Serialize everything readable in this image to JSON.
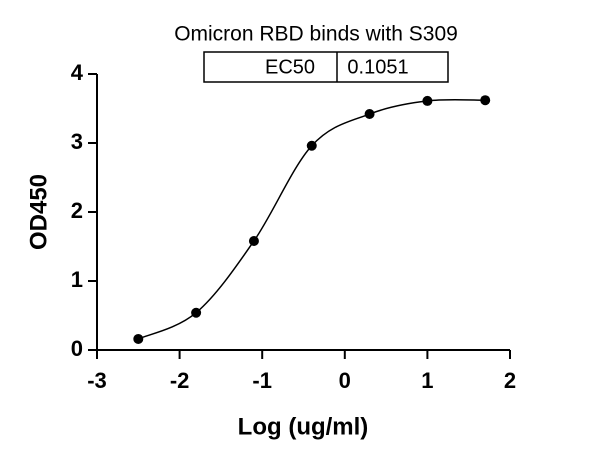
{
  "chart_data": {
    "type": "scatter",
    "title": "Omicron RBD binds with S309",
    "annotation": {
      "label": "EC50",
      "value": "0.1051"
    },
    "x_label": "Log (ug/ml)",
    "y_label": "OD450",
    "x": [
      -2.5,
      -1.8,
      -1.1,
      -0.4,
      0.3,
      1.0,
      1.7
    ],
    "values": [
      0.16,
      0.54,
      1.58,
      2.96,
      3.42,
      3.61,
      3.62
    ],
    "color": "#000000",
    "fit_curve": true,
    "xlim": [
      -3,
      2
    ],
    "xticks": [
      -3,
      -2,
      -1,
      0,
      1,
      2
    ],
    "ylim": [
      0,
      4
    ],
    "yticks": [
      0,
      1,
      2,
      3,
      4
    ]
  }
}
